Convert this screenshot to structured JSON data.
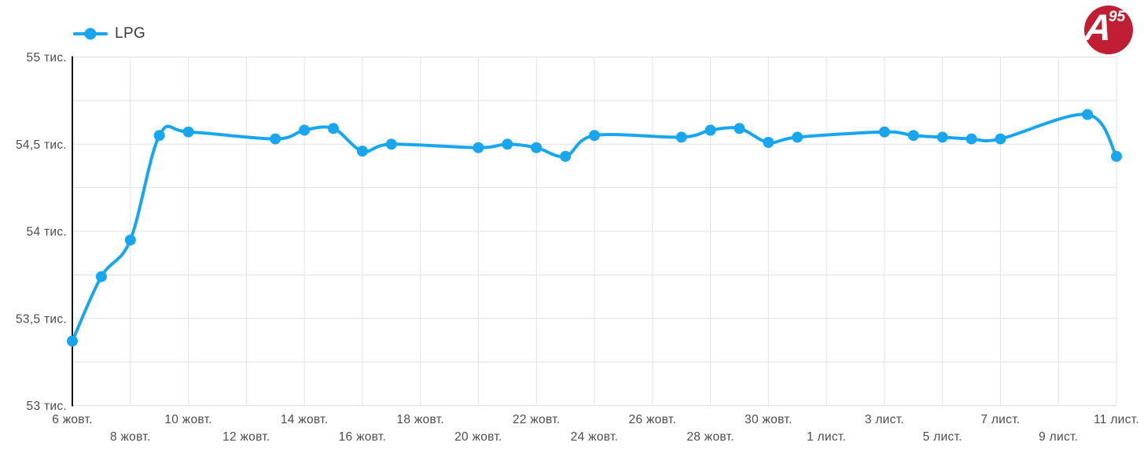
{
  "legend": {
    "label": "LPG"
  },
  "logo": {
    "letter": "A",
    "number": "95"
  },
  "colors": {
    "line": "#18a7ee",
    "marker": "#18a7ee",
    "grid": "#e1e1e1",
    "axis": "#151515",
    "tick_text": "#4d4d4d",
    "legend_text": "#3a3a3a",
    "logo_red": "#c01f33",
    "background": "#ffffff"
  },
  "chart_data": {
    "type": "line",
    "title": "",
    "xlabel": "",
    "ylabel": "",
    "unit_suffix": "тис.",
    "ylim": [
      53,
      55
    ],
    "y_minor_step": 0.25,
    "xlim_days": [
      0,
      36
    ],
    "x_tick_step_days": 2,
    "grid": true,
    "smoothed": true,
    "legend_position": "top-left",
    "series": [
      {
        "name": "LPG",
        "color": "#18a7ee",
        "points": [
          {
            "date": "6 жовт.",
            "day": 0,
            "value": 53.37
          },
          {
            "date": "7 жовт.",
            "day": 1,
            "value": 53.74
          },
          {
            "date": "8 жовт.",
            "day": 2,
            "value": 53.95
          },
          {
            "date": "9 жовт.",
            "day": 3,
            "value": 54.55
          },
          {
            "date": "10 жовт.",
            "day": 4,
            "value": 54.57
          },
          {
            "date": "13 жовт.",
            "day": 7,
            "value": 54.53
          },
          {
            "date": "14 жовт.",
            "day": 8,
            "value": 54.58
          },
          {
            "date": "15 жовт.",
            "day": 9,
            "value": 54.59
          },
          {
            "date": "16 жовт.",
            "day": 10,
            "value": 54.46
          },
          {
            "date": "17 жовт.",
            "day": 11,
            "value": 54.5
          },
          {
            "date": "20 жовт.",
            "day": 14,
            "value": 54.48
          },
          {
            "date": "21 жовт.",
            "day": 15,
            "value": 54.5
          },
          {
            "date": "22 жовт.",
            "day": 16,
            "value": 54.48
          },
          {
            "date": "23 жовт.",
            "day": 17,
            "value": 54.43
          },
          {
            "date": "24 жовт.",
            "day": 18,
            "value": 54.55
          },
          {
            "date": "27 жовт.",
            "day": 21,
            "value": 54.54
          },
          {
            "date": "28 жовт.",
            "day": 22,
            "value": 54.58
          },
          {
            "date": "29 жовт.",
            "day": 23,
            "value": 54.59
          },
          {
            "date": "30 жовт.",
            "day": 24,
            "value": 54.51
          },
          {
            "date": "31 жовт.",
            "day": 25,
            "value": 54.54
          },
          {
            "date": "3 лист.",
            "day": 28,
            "value": 54.57
          },
          {
            "date": "4 лист.",
            "day": 29,
            "value": 54.55
          },
          {
            "date": "5 лист.",
            "day": 30,
            "value": 54.54
          },
          {
            "date": "6 лист.",
            "day": 31,
            "value": 54.53
          },
          {
            "date": "7 лист.",
            "day": 32,
            "value": 54.53
          },
          {
            "date": "10 лист.",
            "day": 35,
            "value": 54.67
          },
          {
            "date": "11 лист.",
            "day": 36,
            "value": 54.43
          }
        ]
      }
    ],
    "y_ticks": [
      {
        "value": 55,
        "label": "55 тис."
      },
      {
        "value": 54.5,
        "label": "54,5 тис."
      },
      {
        "value": 54,
        "label": "54 тис."
      },
      {
        "value": 53.5,
        "label": "53,5 тис."
      },
      {
        "value": 53,
        "label": "53 тис."
      }
    ],
    "x_ticks": [
      {
        "day": 0,
        "label": "6 жовт.",
        "row": 1
      },
      {
        "day": 2,
        "label": "8 жовт.",
        "row": 2
      },
      {
        "day": 4,
        "label": "10 жовт.",
        "row": 1
      },
      {
        "day": 6,
        "label": "12 жовт.",
        "row": 2
      },
      {
        "day": 8,
        "label": "14 жовт.",
        "row": 1
      },
      {
        "day": 10,
        "label": "16 жовт.",
        "row": 2
      },
      {
        "day": 12,
        "label": "18 жовт.",
        "row": 1
      },
      {
        "day": 14,
        "label": "20 жовт.",
        "row": 2
      },
      {
        "day": 16,
        "label": "22 жовт.",
        "row": 1
      },
      {
        "day": 18,
        "label": "24 жовт.",
        "row": 2
      },
      {
        "day": 20,
        "label": "26 жовт.",
        "row": 1
      },
      {
        "day": 22,
        "label": "28 жовт.",
        "row": 2
      },
      {
        "day": 24,
        "label": "30 жовт.",
        "row": 1
      },
      {
        "day": 26,
        "label": "1 лист.",
        "row": 2
      },
      {
        "day": 28,
        "label": "3 лист.",
        "row": 1
      },
      {
        "day": 30,
        "label": "5 лист.",
        "row": 2
      },
      {
        "day": 32,
        "label": "7 лист.",
        "row": 1
      },
      {
        "day": 34,
        "label": "9 лист.",
        "row": 2
      },
      {
        "day": 36,
        "label": "11 лист.",
        "row": 1
      }
    ]
  }
}
